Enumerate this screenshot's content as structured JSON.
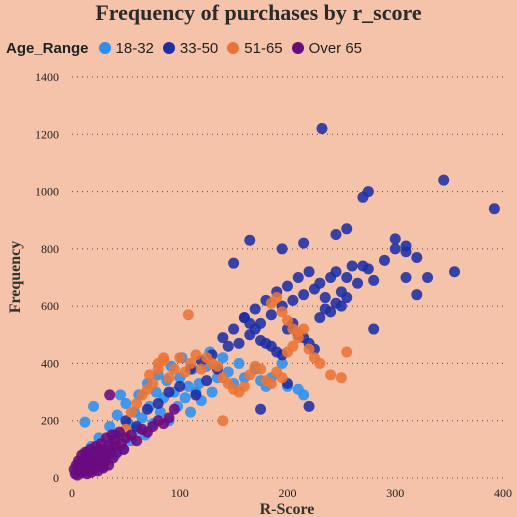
{
  "chart_data": {
    "type": "scatter",
    "title": "Frequency of purchases by r_score",
    "xlabel": "R-Score",
    "ylabel": "Frequency",
    "xlim": [
      0,
      400
    ],
    "ylim": [
      0,
      1400
    ],
    "xticks": [
      "0",
      "100",
      "200",
      "300",
      "400"
    ],
    "yticks": [
      "0",
      "200",
      "400",
      "600",
      "800",
      "1000",
      "1200",
      "1400"
    ],
    "grid": "horizontal dotted",
    "legend_title": "Age_Range",
    "legend_position": "top-left",
    "series": [
      {
        "name": "18-32",
        "color": "#2b8ff0",
        "points": [
          [
            5,
            40
          ],
          [
            8,
            60
          ],
          [
            10,
            20
          ],
          [
            12,
            90
          ],
          [
            15,
            50
          ],
          [
            18,
            110
          ],
          [
            20,
            70
          ],
          [
            22,
            30
          ],
          [
            25,
            140
          ],
          [
            28,
            90
          ],
          [
            30,
            60
          ],
          [
            35,
            180
          ],
          [
            38,
            120
          ],
          [
            40,
            80
          ],
          [
            42,
            220
          ],
          [
            45,
            150
          ],
          [
            48,
            100
          ],
          [
            50,
            260
          ],
          [
            52,
            190
          ],
          [
            55,
            130
          ],
          [
            58,
            230
          ],
          [
            60,
            170
          ],
          [
            62,
            290
          ],
          [
            65,
            210
          ],
          [
            68,
            150
          ],
          [
            70,
            330
          ],
          [
            72,
            250
          ],
          [
            75,
            190
          ],
          [
            78,
            300
          ],
          [
            80,
            360
          ],
          [
            82,
            230
          ],
          [
            85,
            280
          ],
          [
            88,
            340
          ],
          [
            90,
            200
          ],
          [
            92,
            390
          ],
          [
            95,
            300
          ],
          [
            98,
            250
          ],
          [
            100,
            350
          ],
          [
            102,
            420
          ],
          [
            105,
            280
          ],
          [
            108,
            320
          ],
          [
            110,
            230
          ],
          [
            112,
            380
          ],
          [
            115,
            300
          ],
          [
            118,
            330
          ],
          [
            120,
            270
          ],
          [
            125,
            390
          ],
          [
            128,
            440
          ],
          [
            130,
            300
          ],
          [
            135,
            350
          ],
          [
            140,
            420
          ],
          [
            145,
            370
          ],
          [
            150,
            330
          ],
          [
            155,
            400
          ],
          [
            160,
            350
          ],
          [
            170,
            380
          ],
          [
            175,
            340
          ],
          [
            180,
            320
          ],
          [
            185,
            350
          ],
          [
            195,
            400
          ],
          [
            200,
            320
          ],
          [
            210,
            310
          ],
          [
            215,
            290
          ],
          [
            12,
            195
          ],
          [
            20,
            250
          ],
          [
            45,
            290
          ]
        ]
      },
      {
        "name": "33-50",
        "color": "#1c2fa5",
        "points": [
          [
            10,
            30
          ],
          [
            20,
            60
          ],
          [
            30,
            90
          ],
          [
            40,
            150
          ],
          [
            50,
            200
          ],
          [
            60,
            180
          ],
          [
            70,
            240
          ],
          [
            80,
            260
          ],
          [
            90,
            300
          ],
          [
            100,
            320
          ],
          [
            110,
            380
          ],
          [
            115,
            290
          ],
          [
            120,
            410
          ],
          [
            125,
            340
          ],
          [
            130,
            430
          ],
          [
            135,
            380
          ],
          [
            140,
            490
          ],
          [
            145,
            460
          ],
          [
            150,
            520
          ],
          [
            155,
            470
          ],
          [
            160,
            560
          ],
          [
            165,
            500
          ],
          [
            170,
            590
          ],
          [
            175,
            540
          ],
          [
            180,
            620
          ],
          [
            185,
            570
          ],
          [
            190,
            650
          ],
          [
            195,
            600
          ],
          [
            200,
            670
          ],
          [
            205,
            620
          ],
          [
            210,
            700
          ],
          [
            215,
            640
          ],
          [
            220,
            720
          ],
          [
            225,
            660
          ],
          [
            230,
            680
          ],
          [
            235,
            630
          ],
          [
            240,
            700
          ],
          [
            245,
            720
          ],
          [
            250,
            650
          ],
          [
            255,
            700
          ],
          [
            260,
            740
          ],
          [
            265,
            680
          ],
          [
            270,
            740
          ],
          [
            275,
            730
          ],
          [
            280,
            690
          ],
          [
            290,
            760
          ],
          [
            300,
            800
          ],
          [
            310,
            810
          ],
          [
            320,
            640
          ],
          [
            330,
            700
          ],
          [
            160,
            560
          ],
          [
            165,
            540
          ],
          [
            170,
            520
          ],
          [
            175,
            480
          ],
          [
            180,
            470
          ],
          [
            185,
            460
          ],
          [
            190,
            440
          ],
          [
            195,
            430
          ],
          [
            200,
            520
          ],
          [
            205,
            540
          ],
          [
            210,
            500
          ],
          [
            215,
            490
          ],
          [
            220,
            470
          ],
          [
            225,
            450
          ],
          [
            230,
            560
          ],
          [
            235,
            590
          ],
          [
            240,
            580
          ],
          [
            245,
            610
          ],
          [
            250,
            600
          ],
          [
            255,
            630
          ],
          [
            150,
            750
          ],
          [
            165,
            830
          ],
          [
            195,
            800
          ],
          [
            215,
            820
          ],
          [
            245,
            850
          ],
          [
            255,
            870
          ],
          [
            270,
            980
          ],
          [
            275,
            1000
          ],
          [
            300,
            835
          ],
          [
            310,
            790
          ],
          [
            320,
            770
          ],
          [
            345,
            1040
          ],
          [
            355,
            720
          ],
          [
            392,
            940
          ],
          [
            232,
            1220
          ],
          [
            200,
            330
          ],
          [
            220,
            250
          ],
          [
            175,
            240
          ],
          [
            280,
            520
          ],
          [
            310,
            700
          ]
        ]
      },
      {
        "name": "51-65",
        "color": "#ea7437",
        "points": [
          [
            20,
            40
          ],
          [
            30,
            70
          ],
          [
            40,
            120
          ],
          [
            50,
            170
          ],
          [
            55,
            230
          ],
          [
            60,
            260
          ],
          [
            65,
            290
          ],
          [
            70,
            310
          ],
          [
            72,
            360
          ],
          [
            75,
            330
          ],
          [
            80,
            380
          ],
          [
            85,
            410
          ],
          [
            90,
            350
          ],
          [
            95,
            380
          ],
          [
            100,
            420
          ],
          [
            105,
            370
          ],
          [
            108,
            570
          ],
          [
            110,
            400
          ],
          [
            115,
            430
          ],
          [
            120,
            380
          ],
          [
            125,
            420
          ],
          [
            130,
            400
          ],
          [
            135,
            390
          ],
          [
            140,
            350
          ],
          [
            145,
            330
          ],
          [
            150,
            310
          ],
          [
            155,
            300
          ],
          [
            160,
            320
          ],
          [
            165,
            360
          ],
          [
            170,
            390
          ],
          [
            175,
            380
          ],
          [
            180,
            340
          ],
          [
            185,
            330
          ],
          [
            190,
            370
          ],
          [
            195,
            350
          ],
          [
            200,
            440
          ],
          [
            205,
            460
          ],
          [
            210,
            490
          ],
          [
            215,
            520
          ],
          [
            220,
            450
          ],
          [
            225,
            420
          ],
          [
            230,
            400
          ],
          [
            240,
            360
          ],
          [
            250,
            350
          ],
          [
            255,
            440
          ],
          [
            185,
            610
          ],
          [
            190,
            630
          ],
          [
            195,
            580
          ],
          [
            200,
            550
          ],
          [
            205,
            520
          ],
          [
            210,
            510
          ],
          [
            140,
            200
          ],
          [
            80,
            400
          ],
          [
            85,
            420
          ]
        ]
      },
      {
        "name": "Over 65",
        "color": "#6a0a80",
        "points": [
          [
            2,
            30
          ],
          [
            3,
            15
          ],
          [
            4,
            45
          ],
          [
            5,
            10
          ],
          [
            6,
            60
          ],
          [
            7,
            25
          ],
          [
            8,
            40
          ],
          [
            9,
            80
          ],
          [
            10,
            20
          ],
          [
            11,
            55
          ],
          [
            12,
            35
          ],
          [
            13,
            90
          ],
          [
            14,
            15
          ],
          [
            15,
            70
          ],
          [
            16,
            45
          ],
          [
            17,
            100
          ],
          [
            18,
            30
          ],
          [
            19,
            60
          ],
          [
            20,
            85
          ],
          [
            21,
            40
          ],
          [
            22,
            110
          ],
          [
            23,
            65
          ],
          [
            24,
            25
          ],
          [
            25,
            95
          ],
          [
            26,
            50
          ],
          [
            27,
            120
          ],
          [
            28,
            75
          ],
          [
            29,
            35
          ],
          [
            30,
            100
          ],
          [
            31,
            60
          ],
          [
            32,
            140
          ],
          [
            33,
            80
          ],
          [
            34,
            45
          ],
          [
            35,
            115
          ],
          [
            36,
            90
          ],
          [
            37,
            150
          ],
          [
            38,
            70
          ],
          [
            39,
            110
          ],
          [
            40,
            130
          ],
          [
            42,
            90
          ],
          [
            44,
            160
          ],
          [
            46,
            120
          ],
          [
            48,
            100
          ],
          [
            50,
            140
          ],
          [
            55,
            150
          ],
          [
            60,
            130
          ],
          [
            65,
            170
          ],
          [
            70,
            160
          ],
          [
            75,
            180
          ],
          [
            80,
            200
          ],
          [
            85,
            190
          ],
          [
            90,
            210
          ],
          [
            95,
            240
          ],
          [
            35,
            290
          ],
          [
            28,
            40
          ],
          [
            18,
            20
          ],
          [
            10,
            50
          ],
          [
            6,
            35
          ],
          [
            14,
            75
          ],
          [
            22,
            55
          ]
        ]
      }
    ]
  }
}
